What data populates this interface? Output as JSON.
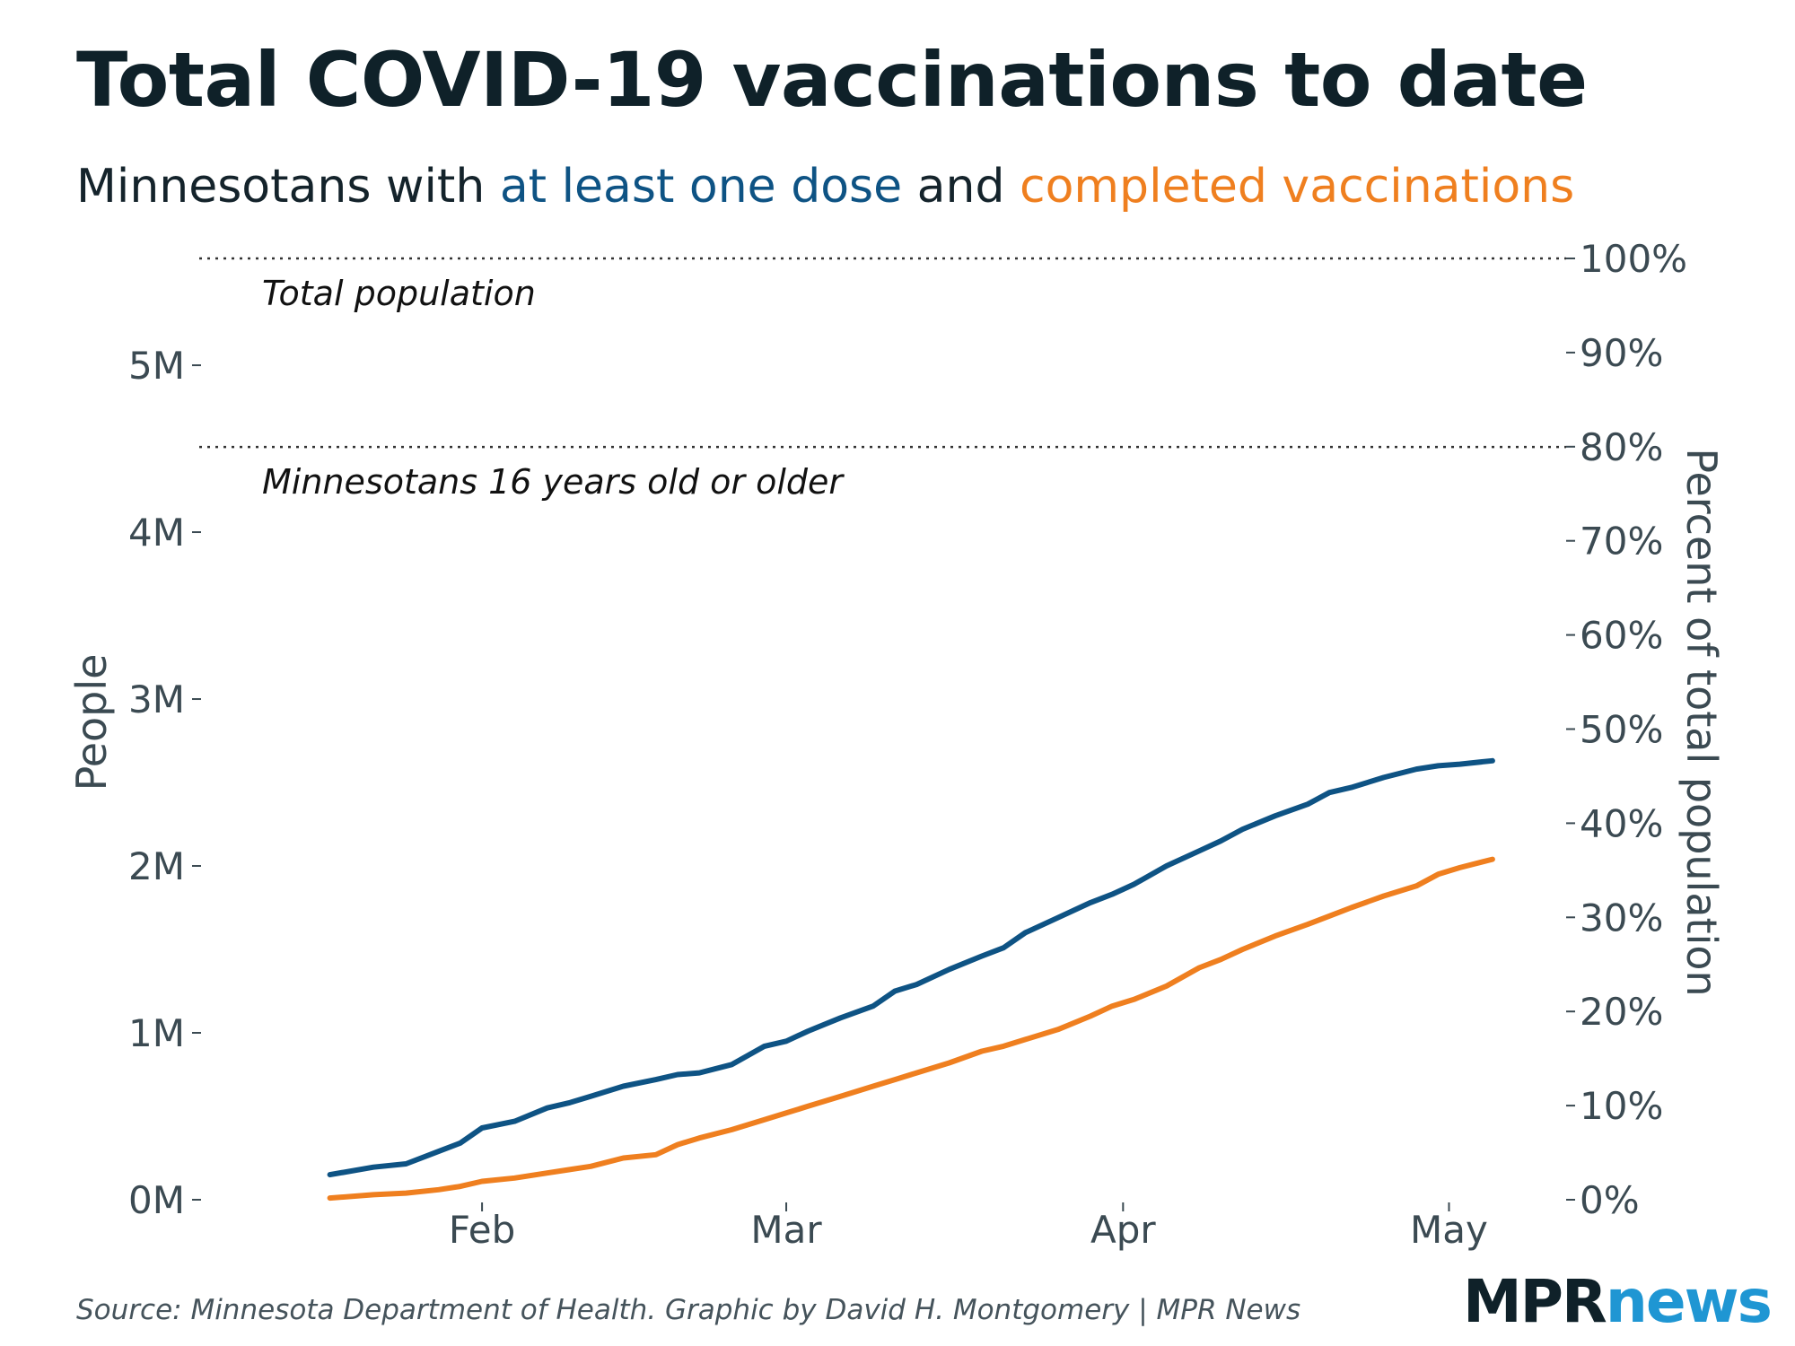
{
  "title": "Total COVID-19 vaccinations to date",
  "subtitle": {
    "prefix": "Minnesotans with ",
    "series1": "at least one dose",
    "middle": " and ",
    "series2": "completed vaccinations"
  },
  "source": "Source: Minnesota Department of Health. Graphic by David H. Montgomery | MPR News",
  "logo": {
    "part1": "MPR",
    "part2": "news"
  },
  "colors": {
    "one_dose": "#0e5384",
    "completed": "#ef7f1f",
    "text": "#14232b",
    "logo_news": "#1f96d3"
  },
  "chart_data": {
    "type": "line",
    "title": "Total COVID-19 vaccinations to date",
    "ylabel": "People",
    "y2label": "Percent of total population",
    "ylim": [
      0,
      5640000
    ],
    "y_ticks": [
      0,
      1000000,
      2000000,
      3000000,
      4000000,
      5000000
    ],
    "y_tick_labels": [
      "0M",
      "1M",
      "2M",
      "3M",
      "4M",
      "5M"
    ],
    "y2_ticks": [
      0,
      10,
      20,
      30,
      40,
      50,
      60,
      70,
      80,
      90,
      100
    ],
    "y2_tick_labels": [
      "0%",
      "10%",
      "20%",
      "30%",
      "40%",
      "50%",
      "60%",
      "70%",
      "80%",
      "90%",
      "100%"
    ],
    "x_ticks": [
      {
        "day": 32,
        "label": "Feb"
      },
      {
        "day": 60,
        "label": "Mar"
      },
      {
        "day": 91,
        "label": "Apr"
      },
      {
        "day": 121,
        "label": "May"
      }
    ],
    "xlim": [
      12,
      126
    ],
    "reference_lines": [
      {
        "label": "Total population",
        "value": 5640000
      },
      {
        "label": "Minnesotans 16 years old or older",
        "value": 4510000
      }
    ],
    "series": [
      {
        "name": "at least one dose",
        "x": [
          18,
          22,
          25,
          28,
          30,
          32,
          35,
          38,
          40,
          42,
          45,
          48,
          50,
          52,
          55,
          58,
          60,
          62,
          65,
          68,
          70,
          72,
          75,
          78,
          80,
          82,
          85,
          88,
          90,
          92,
          95,
          98,
          100,
          102,
          105,
          108,
          110,
          112,
          115,
          118,
          120,
          122,
          125
        ],
        "values": [
          150000,
          195000,
          215000,
          290000,
          340000,
          430000,
          470000,
          550000,
          580000,
          620000,
          680000,
          720000,
          750000,
          760000,
          810000,
          920000,
          950000,
          1010000,
          1090000,
          1160000,
          1250000,
          1290000,
          1380000,
          1460000,
          1510000,
          1600000,
          1690000,
          1780000,
          1830000,
          1890000,
          2000000,
          2090000,
          2150000,
          2220000,
          2300000,
          2370000,
          2440000,
          2470000,
          2530000,
          2580000,
          2600000,
          2610000,
          2630000
        ]
      },
      {
        "name": "completed vaccinations",
        "x": [
          18,
          22,
          25,
          28,
          30,
          32,
          35,
          38,
          40,
          42,
          45,
          48,
          50,
          52,
          55,
          58,
          60,
          62,
          65,
          68,
          70,
          72,
          75,
          78,
          80,
          82,
          85,
          88,
          90,
          92,
          95,
          98,
          100,
          102,
          105,
          108,
          110,
          112,
          115,
          118,
          120,
          122,
          125
        ],
        "values": [
          10000,
          30000,
          40000,
          60000,
          80000,
          110000,
          130000,
          160000,
          180000,
          200000,
          250000,
          270000,
          330000,
          370000,
          420000,
          480000,
          520000,
          560000,
          620000,
          680000,
          720000,
          760000,
          820000,
          890000,
          920000,
          960000,
          1020000,
          1100000,
          1160000,
          1200000,
          1280000,
          1390000,
          1440000,
          1500000,
          1580000,
          1650000,
          1700000,
          1750000,
          1820000,
          1880000,
          1950000,
          1990000,
          2040000
        ]
      }
    ]
  }
}
